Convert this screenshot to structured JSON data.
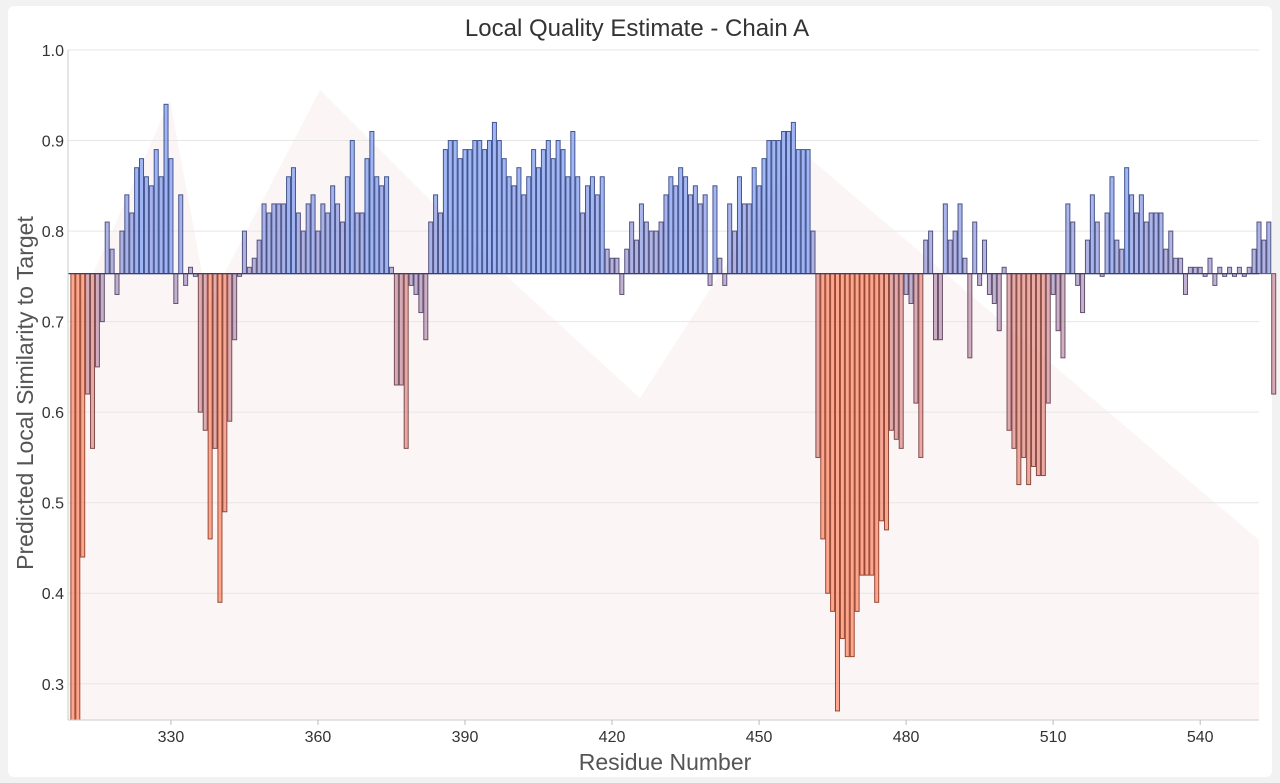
{
  "chart_data": {
    "type": "bar",
    "title": "Local Quality Estimate - Chain A",
    "xlabel": "Residue Number",
    "ylabel": "Predicted Local Similarity to Target",
    "baseline": 0.753,
    "xlim": [
      309,
      552
    ],
    "ylim": [
      0.26,
      1.0
    ],
    "yticks": [
      0.3,
      0.4,
      0.5,
      0.6,
      0.7,
      0.8,
      0.9,
      1.0
    ],
    "ytick_labels": [
      "0.3",
      "0.4",
      "0.5",
      "0.6",
      "0.7",
      "0.8",
      "0.9",
      "1.0"
    ],
    "xticks": [
      330,
      360,
      390,
      420,
      450,
      480,
      510,
      540
    ],
    "xtick_labels": [
      "330",
      "360",
      "390",
      "420",
      "450",
      "480",
      "510",
      "540"
    ],
    "colors": {
      "high": "#6f8ff0",
      "low": "#ff7a55"
    },
    "x_start": 310,
    "values": [
      0.26,
      0.26,
      0.44,
      0.62,
      0.56,
      0.65,
      0.7,
      0.81,
      0.78,
      0.73,
      0.8,
      0.84,
      0.82,
      0.87,
      0.88,
      0.86,
      0.85,
      0.89,
      0.86,
      0.94,
      0.88,
      0.72,
      0.84,
      0.74,
      0.76,
      0.75,
      0.6,
      0.58,
      0.46,
      0.56,
      0.39,
      0.49,
      0.59,
      0.68,
      0.75,
      0.8,
      0.76,
      0.77,
      0.79,
      0.83,
      0.82,
      0.83,
      0.83,
      0.83,
      0.86,
      0.87,
      0.82,
      0.8,
      0.83,
      0.84,
      0.8,
      0.83,
      0.82,
      0.85,
      0.83,
      0.81,
      0.86,
      0.9,
      0.82,
      0.82,
      0.88,
      0.91,
      0.86,
      0.85,
      0.86,
      0.76,
      0.63,
      0.63,
      0.56,
      0.74,
      0.73,
      0.71,
      0.68,
      0.81,
      0.84,
      0.82,
      0.89,
      0.9,
      0.9,
      0.88,
      0.89,
      0.89,
      0.9,
      0.9,
      0.89,
      0.9,
      0.92,
      0.9,
      0.88,
      0.86,
      0.85,
      0.87,
      0.84,
      0.86,
      0.89,
      0.87,
      0.89,
      0.9,
      0.88,
      0.9,
      0.89,
      0.86,
      0.91,
      0.86,
      0.82,
      0.85,
      0.86,
      0.84,
      0.86,
      0.78,
      0.77,
      0.77,
      0.73,
      0.78,
      0.81,
      0.79,
      0.83,
      0.81,
      0.8,
      0.8,
      0.81,
      0.84,
      0.86,
      0.85,
      0.87,
      0.86,
      0.84,
      0.85,
      0.83,
      0.84,
      0.74,
      0.85,
      0.77,
      0.74,
      0.83,
      0.8,
      0.86,
      0.83,
      0.83,
      0.87,
      0.85,
      0.88,
      0.9,
      0.9,
      0.9,
      0.91,
      0.91,
      0.92,
      0.89,
      0.89,
      0.89,
      0.8,
      0.55,
      0.46,
      0.4,
      0.38,
      0.27,
      0.35,
      0.33,
      0.33,
      0.38,
      0.42,
      0.42,
      0.42,
      0.39,
      0.48,
      0.47,
      0.58,
      0.57,
      0.56,
      0.73,
      0.72,
      0.61,
      0.55,
      0.79,
      0.8,
      0.68,
      0.68,
      0.83,
      0.79,
      0.8,
      0.83,
      0.77,
      0.66,
      0.81,
      0.74,
      0.79,
      0.73,
      0.72,
      0.69,
      0.76,
      0.58,
      0.56,
      0.52,
      0.55,
      0.52,
      0.54,
      0.53,
      0.53,
      0.61,
      0.73,
      0.69,
      0.66,
      0.83,
      0.81,
      0.74,
      0.71,
      0.79,
      0.84,
      0.81,
      0.75,
      0.82,
      0.86,
      0.79,
      0.78,
      0.87,
      0.84,
      0.82,
      0.84,
      0.81,
      0.82,
      0.82,
      0.82,
      0.78,
      0.8,
      0.77,
      0.77,
      0.73,
      0.76,
      0.76,
      0.76,
      0.75,
      0.77,
      0.74,
      0.76,
      0.75,
      0.76,
      0.75,
      0.76,
      0.75,
      0.76,
      0.78,
      0.81,
      0.79,
      0.81,
      0.62
    ]
  }
}
